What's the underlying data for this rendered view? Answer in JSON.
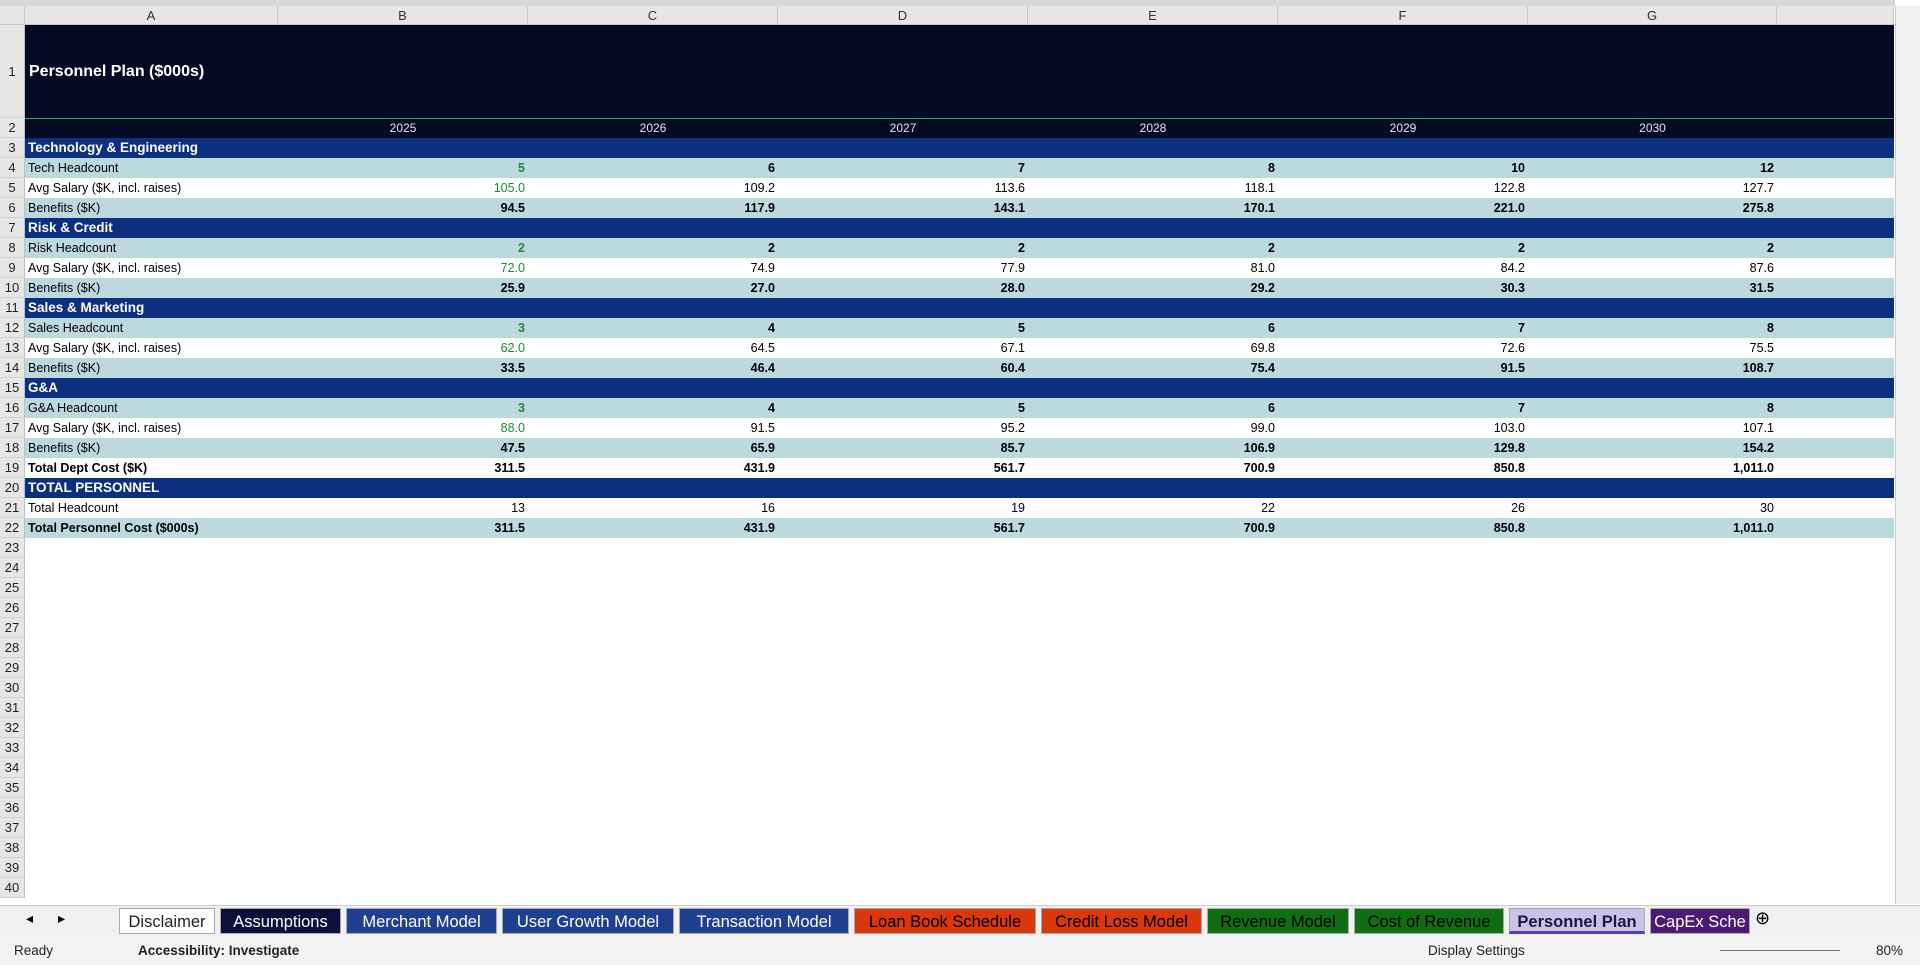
{
  "header": {
    "title": "Personnel Plan  ($000s)"
  },
  "columns": [
    "A",
    "B",
    "C",
    "D",
    "E",
    "F",
    "G"
  ],
  "years": [
    "2025",
    "2026",
    "2027",
    "2028",
    "2029",
    "2030"
  ],
  "row_numbers": [
    1,
    2,
    3,
    4,
    5,
    6,
    7,
    8,
    9,
    10,
    11,
    12,
    13,
    14,
    15,
    16,
    17,
    18,
    19,
    20,
    21,
    22,
    23,
    24,
    25,
    26,
    27,
    28,
    29,
    30,
    31,
    32,
    33,
    34,
    35,
    36,
    37,
    38,
    39,
    40
  ],
  "rows": [
    {
      "label": "Technology & Engineering"
    },
    {
      "label": "Tech Headcount",
      "values": [
        "5",
        "6",
        "7",
        "8",
        "10",
        "12"
      ]
    },
    {
      "label": "Avg Salary ($K, incl. raises)",
      "values": [
        "105.0",
        "109.2",
        "113.6",
        "118.1",
        "122.8",
        "127.7"
      ]
    },
    {
      "label": "Benefits ($K)",
      "values": [
        "94.5",
        "117.9",
        "143.1",
        "170.1",
        "221.0",
        "275.8"
      ]
    },
    {
      "label": "Risk & Credit"
    },
    {
      "label": "Risk Headcount",
      "values": [
        "2",
        "2",
        "2",
        "2",
        "2",
        "2"
      ]
    },
    {
      "label": "Avg Salary ($K, incl. raises)",
      "values": [
        "72.0",
        "74.9",
        "77.9",
        "81.0",
        "84.2",
        "87.6"
      ]
    },
    {
      "label": "Benefits ($K)",
      "values": [
        "25.9",
        "27.0",
        "28.0",
        "29.2",
        "30.3",
        "31.5"
      ]
    },
    {
      "label": "Sales & Marketing"
    },
    {
      "label": "Sales Headcount",
      "values": [
        "3",
        "4",
        "5",
        "6",
        "7",
        "8"
      ]
    },
    {
      "label": "Avg Salary ($K, incl. raises)",
      "values": [
        "62.0",
        "64.5",
        "67.1",
        "69.8",
        "72.6",
        "75.5"
      ]
    },
    {
      "label": "Benefits ($K)",
      "values": [
        "33.5",
        "46.4",
        "60.4",
        "75.4",
        "91.5",
        "108.7"
      ]
    },
    {
      "label": "G&A"
    },
    {
      "label": "G&A Headcount",
      "values": [
        "3",
        "4",
        "5",
        "6",
        "7",
        "8"
      ]
    },
    {
      "label": "Avg Salary ($K, incl. raises)",
      "values": [
        "88.0",
        "91.5",
        "95.2",
        "99.0",
        "103.0",
        "107.1"
      ]
    },
    {
      "label": "Benefits ($K)",
      "values": [
        "47.5",
        "65.9",
        "85.7",
        "106.9",
        "129.8",
        "154.2"
      ]
    },
    {
      "label": "Total Dept Cost ($K)",
      "values": [
        "311.5",
        "431.9",
        "561.7",
        "700.9",
        "850.8",
        "1,011.0"
      ]
    },
    {
      "label": "TOTAL PERSONNEL"
    },
    {
      "label": "Total Headcount",
      "values": [
        "13",
        "16",
        "19",
        "22",
        "26",
        "30"
      ]
    },
    {
      "label": "Total Personnel Cost ($000s)",
      "values": [
        "311.5",
        "431.9",
        "561.7",
        "700.9",
        "850.8",
        "1,011.0"
      ]
    }
  ],
  "tabs": [
    "Disclaimer",
    "Assumptions",
    "Merchant Model",
    "User Growth Model",
    "Transaction Model",
    "Loan Book Schedule",
    "Credit Loss Model",
    "Revenue Model",
    "Cost of Revenue",
    "Personnel Plan",
    "CapEx Sche"
  ],
  "status": {
    "ready": "Ready",
    "accessibility": "Accessibility: Investigate",
    "display": "Display Settings",
    "zoom": "80%"
  }
}
